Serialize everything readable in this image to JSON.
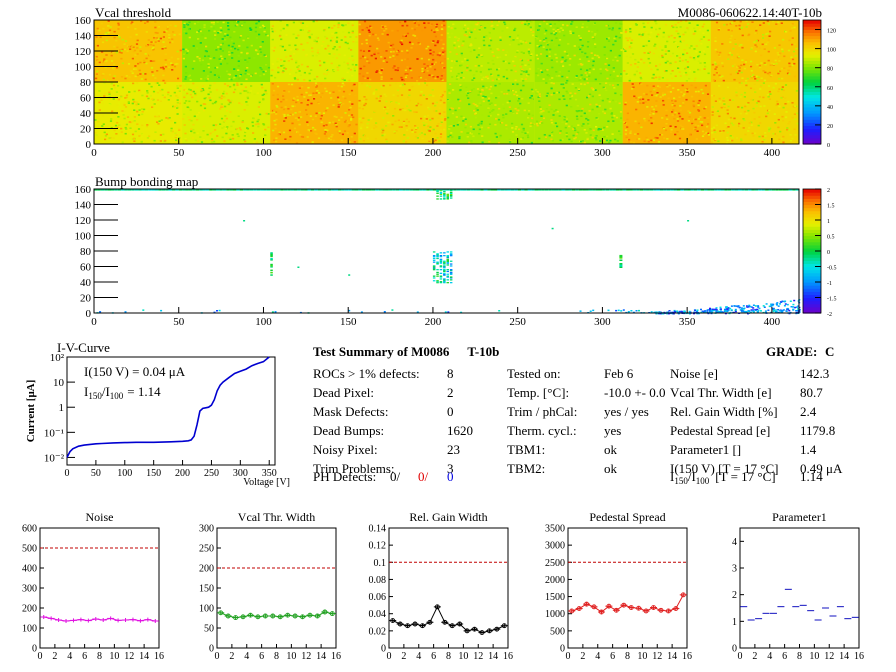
{
  "header": {
    "title_left": "Vcal threshold",
    "title_right": "M0086-060622.14:40T-10b"
  },
  "chart_data": [
    {
      "type": "heatmap",
      "title": "Vcal threshold",
      "xlim": [
        0,
        416
      ],
      "ylim": [
        0,
        160
      ],
      "xticks": [
        0,
        50,
        100,
        150,
        200,
        250,
        300,
        350,
        400
      ],
      "yticks": [
        0,
        20,
        40,
        60,
        80,
        100,
        120,
        140,
        160
      ],
      "colorbar": {
        "min": 0,
        "max": 130,
        "ticks": [
          0,
          20,
          40,
          60,
          80,
          100,
          120
        ]
      },
      "roc_mean_top": [
        105,
        82,
        92,
        112,
        88,
        84,
        92,
        104
      ],
      "roc_mean_bottom": [
        95,
        92,
        108,
        100,
        86,
        86,
        108,
        100
      ]
    },
    {
      "type": "heatmap",
      "title": "Bump bonding map",
      "xlim": [
        0,
        416
      ],
      "ylim": [
        0,
        160
      ],
      "xticks": [
        0,
        50,
        100,
        150,
        200,
        250,
        300,
        350,
        400
      ],
      "yticks": [
        0,
        20,
        40,
        60,
        80,
        100,
        120,
        140,
        160
      ],
      "colorbar": {
        "min": -2,
        "max": 2,
        "ticks": [
          2,
          1.5,
          1,
          0.5,
          0,
          -0.5,
          -1,
          -1.5,
          -2
        ]
      }
    },
    {
      "type": "line",
      "title": "I-V-Curve",
      "xlabel": "Voltage [V]",
      "ylabel": "Current [μA]",
      "yscale": "log",
      "xlim": [
        0,
        360
      ],
      "ylim": [
        0.005,
        100
      ],
      "xticks": [
        0,
        50,
        100,
        150,
        200,
        250,
        300,
        350
      ],
      "ytick_labels": [
        "10⁻²",
        "10⁻¹",
        "1",
        "10",
        "10²"
      ],
      "ytick_values": [
        0.01,
        0.1,
        1,
        10,
        100
      ],
      "annotation_1": "I(150 V) = 0.04 μA",
      "annotation_2_prefix": "I",
      "annotation_2_sub1": "150",
      "annotation_2_mid": "/I",
      "annotation_2_sub2": "100",
      "annotation_2_value": "=  1.14",
      "x": [
        0,
        5,
        10,
        20,
        30,
        40,
        50,
        60,
        80,
        100,
        120,
        150,
        180,
        200,
        210,
        215,
        220,
        225,
        230,
        235,
        240,
        245,
        250,
        255,
        260,
        265,
        270,
        280,
        290,
        300,
        310,
        320,
        330,
        340,
        350
      ],
      "y": [
        0.01,
        0.017,
        0.022,
        0.028,
        0.031,
        0.033,
        0.035,
        0.036,
        0.038,
        0.039,
        0.04,
        0.04,
        0.042,
        0.044,
        0.046,
        0.05,
        0.07,
        0.2,
        0.7,
        0.9,
        0.95,
        1.0,
        1.2,
        2.0,
        4.5,
        7.5,
        10,
        15,
        22,
        27,
        33,
        45,
        55,
        65,
        100
      ]
    },
    {
      "type": "line",
      "title": "Noise",
      "xlim": [
        0,
        16
      ],
      "ylim": [
        0,
        600
      ],
      "xticks": [
        0,
        2,
        4,
        6,
        8,
        10,
        12,
        14,
        16
      ],
      "yticks": [
        0,
        100,
        200,
        300,
        400,
        500,
        600
      ],
      "threshold": 500,
      "color": "#e010e0",
      "values": [
        155,
        148,
        140,
        135,
        138,
        142,
        137,
        145,
        140,
        148,
        138,
        140,
        142,
        136,
        142,
        135
      ]
    },
    {
      "type": "line",
      "title": "Vcal Thr. Width",
      "xlim": [
        0,
        16
      ],
      "ylim": [
        0,
        300
      ],
      "xticks": [
        0,
        2,
        4,
        6,
        8,
        10,
        12,
        14,
        16
      ],
      "yticks": [
        0,
        50,
        100,
        150,
        200,
        250,
        300
      ],
      "threshold": 200,
      "color": "#20a020",
      "values": [
        88,
        80,
        76,
        78,
        82,
        78,
        80,
        80,
        78,
        82,
        80,
        78,
        82,
        80,
        90,
        86
      ]
    },
    {
      "type": "line",
      "title": "Rel. Gain Width",
      "xlim": [
        0,
        16
      ],
      "ylim": [
        0,
        0.14
      ],
      "xticks": [
        0,
        2,
        4,
        6,
        8,
        10,
        12,
        14,
        16
      ],
      "yticks": [
        0,
        0.02,
        0.04,
        0.06,
        0.08,
        0.1,
        0.12,
        0.14
      ],
      "threshold": 0.1,
      "color": "#000000",
      "values": [
        0.032,
        0.028,
        0.026,
        0.028,
        0.026,
        0.03,
        0.048,
        0.03,
        0.026,
        0.028,
        0.02,
        0.022,
        0.018,
        0.02,
        0.022,
        0.026
      ]
    },
    {
      "type": "line",
      "title": "Pedestal Spread",
      "xlim": [
        0,
        16
      ],
      "ylim": [
        0,
        3500
      ],
      "xticks": [
        0,
        2,
        4,
        6,
        8,
        10,
        12,
        14,
        16
      ],
      "yticks": [
        0,
        500,
        1000,
        1500,
        2000,
        2500,
        3000,
        3500
      ],
      "threshold": 2500,
      "color": "#e02020",
      "values": [
        1080,
        1150,
        1280,
        1200,
        1050,
        1220,
        1100,
        1250,
        1180,
        1160,
        1080,
        1180,
        1100,
        1080,
        1150,
        1550
      ]
    },
    {
      "type": "scatter",
      "title": "Parameter1",
      "xlim": [
        0,
        16
      ],
      "ylim": [
        0,
        4.5
      ],
      "xticks": [
        0,
        2,
        4,
        6,
        8,
        10,
        12,
        14,
        16
      ],
      "yticks": [
        0,
        1,
        2,
        3,
        4
      ],
      "color": "#1010c0",
      "values": [
        1.55,
        1.05,
        1.1,
        1.3,
        1.3,
        1.55,
        2.2,
        1.55,
        1.6,
        1.4,
        1.05,
        1.5,
        1.2,
        1.55,
        1.1,
        1.15
      ]
    }
  ],
  "summary": {
    "title_prefix": "Test Summary of M0086",
    "title_suffix": "T-10b",
    "grade_label": "GRADE:",
    "grade_value": "C",
    "col1": [
      {
        "label": "ROCs > 1% defects:",
        "value": "8"
      },
      {
        "label": "Dead Pixel:",
        "value": "2"
      },
      {
        "label": "Mask Defects:",
        "value": "0"
      },
      {
        "label": "Dead Bumps:",
        "value": "1620"
      },
      {
        "label": "Noisy Pixel:",
        "value": "23"
      },
      {
        "label": "Trim Problems:",
        "value": "3"
      }
    ],
    "ph_defects": {
      "label": "PH Defects:",
      "v1": "0/",
      "v2": "0/",
      "v3": "0"
    },
    "col2": [
      {
        "label": "Tested on:",
        "value": "Feb 6"
      },
      {
        "label": "Temp. [°C]:",
        "value": "-10.0 +- 0.0"
      },
      {
        "label": "Trim / phCal:",
        "value": "yes / yes"
      },
      {
        "label": "Therm. cycl.:",
        "value": "yes"
      },
      {
        "label": "TBM1:",
        "value": "ok"
      },
      {
        "label": "TBM2:",
        "value": "ok"
      }
    ],
    "col3": [
      {
        "label": "Noise [e]",
        "value": "142.3"
      },
      {
        "label": "Vcal Thr. Width [e]",
        "value": "80.7"
      },
      {
        "label": "Rel. Gain Width [%]",
        "value": "2.4"
      },
      {
        "label": "Pedestal Spread [e]",
        "value": "1179.8"
      },
      {
        "label": "Parameter1 []",
        "value": "1.4"
      },
      {
        "label": "I(150 V) [T = 17 °C]",
        "value": "0.49 μA"
      }
    ],
    "ratio_row": {
      "prefix": "I",
      "sub1": "150",
      "mid": "/I",
      "sub2": "100",
      "cond": "[T = 17 °C]",
      "value": "1.14"
    }
  }
}
